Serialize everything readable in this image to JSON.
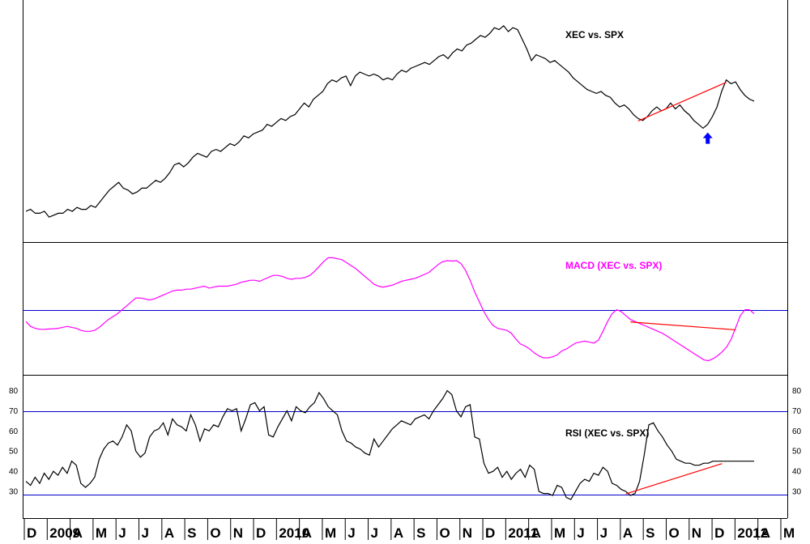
{
  "chart_data": [
    {
      "panel": "price",
      "type": "line",
      "title": "XEC vs. SPX",
      "line_color": "#000000",
      "annotations": [
        {
          "type": "trendline",
          "color": "#ff0000",
          "from_week": 132,
          "to_week": 151
        },
        {
          "type": "arrow",
          "direction": "up",
          "color": "#0000ff",
          "at_week": 147
        }
      ],
      "values": [
        0.9,
        0.91,
        0.89,
        0.89,
        0.9,
        0.87,
        0.88,
        0.89,
        0.89,
        0.91,
        0.9,
        0.92,
        0.91,
        0.91,
        0.93,
        0.92,
        0.95,
        0.98,
        1.01,
        1.03,
        1.05,
        1.02,
        1.01,
        0.99,
        1.0,
        1.02,
        1.02,
        1.04,
        1.06,
        1.05,
        1.07,
        1.1,
        1.14,
        1.15,
        1.13,
        1.15,
        1.18,
        1.2,
        1.19,
        1.18,
        1.21,
        1.22,
        1.21,
        1.23,
        1.25,
        1.24,
        1.26,
        1.29,
        1.28,
        1.3,
        1.31,
        1.32,
        1.35,
        1.34,
        1.36,
        1.38,
        1.37,
        1.39,
        1.4,
        1.43,
        1.46,
        1.44,
        1.48,
        1.5,
        1.52,
        1.56,
        1.58,
        1.57,
        1.59,
        1.6,
        1.55,
        1.6,
        1.62,
        1.61,
        1.6,
        1.61,
        1.6,
        1.58,
        1.59,
        1.58,
        1.61,
        1.63,
        1.62,
        1.64,
        1.65,
        1.66,
        1.67,
        1.66,
        1.68,
        1.7,
        1.71,
        1.69,
        1.72,
        1.74,
        1.73,
        1.76,
        1.77,
        1.79,
        1.81,
        1.8,
        1.82,
        1.85,
        1.84,
        1.86,
        1.83,
        1.85,
        1.84,
        1.79,
        1.74,
        1.68,
        1.71,
        1.7,
        1.69,
        1.67,
        1.68,
        1.66,
        1.64,
        1.62,
        1.59,
        1.57,
        1.55,
        1.53,
        1.52,
        1.51,
        1.52,
        1.5,
        1.49,
        1.46,
        1.44,
        1.45,
        1.43,
        1.4,
        1.38,
        1.37,
        1.39,
        1.42,
        1.44,
        1.42,
        1.43,
        1.46,
        1.43,
        1.45,
        1.42,
        1.4,
        1.37,
        1.35,
        1.33,
        1.35,
        1.39,
        1.44,
        1.52,
        1.58,
        1.56,
        1.57,
        1.53,
        1.5,
        1.48,
        1.47
      ]
    },
    {
      "panel": "macd",
      "type": "line",
      "title": "MACD (XEC vs. SPX)",
      "line_color": "#ff00ff",
      "reference_line": 0,
      "annotations": [
        {
          "type": "trendline",
          "color": "#ff0000",
          "from_week": 132,
          "to_week": 155
        }
      ],
      "values": [
        -0.6,
        -0.85,
        -0.95,
        -1.0,
        -1.0,
        -0.98,
        -0.97,
        -0.95,
        -0.9,
        -0.85,
        -0.9,
        -0.95,
        -1.05,
        -1.1,
        -1.1,
        -1.05,
        -0.9,
        -0.7,
        -0.5,
        -0.35,
        -0.2,
        0.0,
        0.2,
        0.4,
        0.6,
        0.6,
        0.55,
        0.5,
        0.55,
        0.65,
        0.75,
        0.85,
        0.95,
        1.0,
        1.0,
        1.05,
        1.05,
        1.1,
        1.15,
        1.2,
        1.1,
        1.15,
        1.2,
        1.2,
        1.2,
        1.25,
        1.3,
        1.4,
        1.45,
        1.5,
        1.5,
        1.45,
        1.55,
        1.65,
        1.75,
        1.75,
        1.7,
        1.6,
        1.55,
        1.6,
        1.6,
        1.65,
        1.75,
        1.95,
        2.2,
        2.45,
        2.65,
        2.65,
        2.6,
        2.55,
        2.4,
        2.25,
        2.1,
        1.9,
        1.7,
        1.5,
        1.3,
        1.2,
        1.15,
        1.2,
        1.25,
        1.35,
        1.45,
        1.5,
        1.55,
        1.6,
        1.7,
        1.8,
        1.9,
        2.1,
        2.3,
        2.45,
        2.5,
        2.48,
        2.5,
        2.35,
        2.0,
        1.5,
        0.9,
        0.4,
        -0.1,
        -0.5,
        -0.8,
        -0.95,
        -1.0,
        -1.05,
        -1.2,
        -1.5,
        -1.75,
        -1.85,
        -2.0,
        -2.2,
        -2.35,
        -2.45,
        -2.45,
        -2.4,
        -2.3,
        -2.1,
        -2.0,
        -1.85,
        -1.7,
        -1.65,
        -1.6,
        -1.65,
        -1.7,
        -1.55,
        -1.1,
        -0.6,
        -0.2,
        0.0,
        -0.1,
        -0.3,
        -0.5,
        -0.6,
        -0.7,
        -0.8,
        -0.9,
        -1.0,
        -1.1,
        -1.2,
        -1.35,
        -1.5,
        -1.65,
        -1.8,
        -1.95,
        -2.1,
        -2.25,
        -2.4,
        -2.55,
        -2.6,
        -2.5,
        -2.35,
        -2.15,
        -1.9,
        -1.5,
        -0.9,
        -0.3,
        0.0,
        0.0,
        -0.2
      ]
    },
    {
      "panel": "rsi",
      "type": "line",
      "title": "RSI (XEC vs. SPX)",
      "line_color": "#000000",
      "reference_lines": [
        70,
        30
      ],
      "ylim": [
        20,
        85
      ],
      "yticks": [
        30,
        40,
        50,
        60,
        70,
        80
      ],
      "annotations": [
        {
          "type": "trendline",
          "color": "#ff0000",
          "from_week": 131,
          "to_week": 152
        }
      ],
      "values": [
        35,
        33,
        37,
        34,
        39,
        36,
        40,
        38,
        42,
        39,
        45,
        43,
        34,
        32,
        34,
        37,
        46,
        51,
        54,
        55,
        53,
        57,
        63,
        60,
        50,
        47,
        49,
        57,
        60,
        61,
        64,
        58,
        66,
        63,
        62,
        60,
        68,
        63,
        55,
        61,
        60,
        63,
        62,
        67,
        71,
        70,
        71,
        60,
        66,
        73,
        74,
        70,
        72,
        58,
        57,
        62,
        66,
        70,
        65,
        72,
        70,
        69,
        72,
        74,
        79,
        76,
        72,
        70,
        68,
        60,
        55,
        54,
        52,
        51,
        49,
        48,
        56,
        52,
        55,
        58,
        61,
        63,
        65,
        64,
        63,
        66,
        67,
        68,
        66,
        70,
        73,
        76,
        80,
        78,
        70,
        67,
        72,
        73,
        57,
        56,
        44,
        39,
        40,
        42,
        37,
        40,
        36,
        39,
        41,
        37,
        43,
        41,
        30,
        29,
        29,
        28,
        33,
        32,
        27,
        26,
        30,
        34,
        36,
        35,
        39,
        38,
        42,
        40,
        34,
        33,
        31,
        30,
        28,
        29,
        35,
        48,
        63,
        64,
        60,
        57,
        53,
        50,
        46,
        45,
        44,
        44,
        43,
        43,
        44,
        44,
        45,
        45,
        45,
        45,
        45,
        45,
        45,
        45,
        45,
        45
      ]
    }
  ],
  "x_axis": {
    "labels": [
      "D",
      "2009",
      "A",
      "M",
      "J",
      "J",
      "A",
      "S",
      "O",
      "N",
      "D",
      "2010",
      "A",
      "M",
      "J",
      "J",
      "A",
      "S",
      "O",
      "N",
      "D",
      "2011",
      "A",
      "M",
      "J",
      "J",
      "A",
      "S",
      "O",
      "N",
      "D",
      "2012",
      "A",
      "M"
    ]
  },
  "rsi_axis_labels": [
    "80",
    "70",
    "60",
    "50",
    "40",
    "30"
  ]
}
